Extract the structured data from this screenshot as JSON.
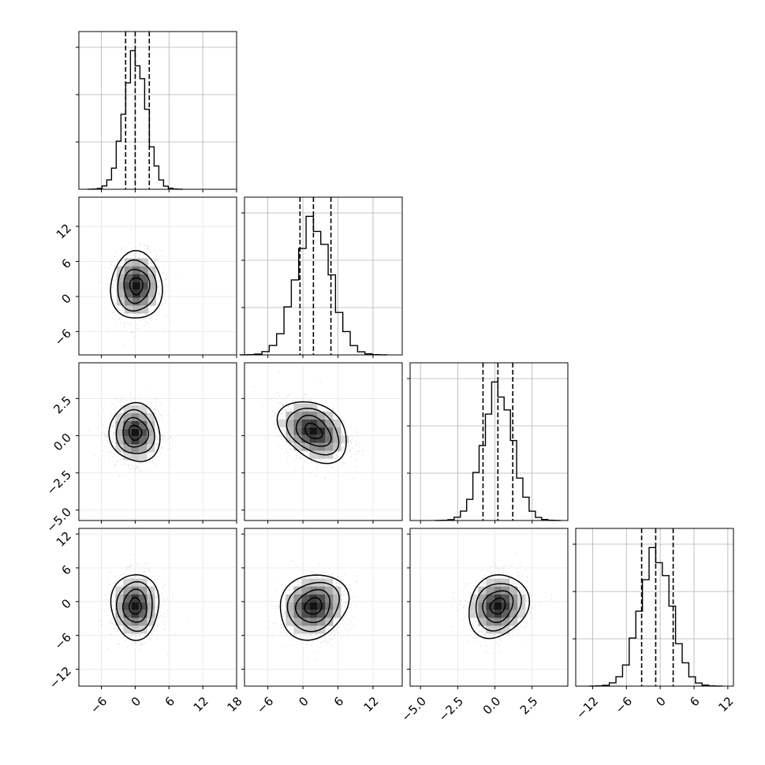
{
  "chart_data": {
    "type": "corner",
    "parameters": 4,
    "quantile_lines": "dashed",
    "grid": true,
    "axes": [
      {
        "range": [
          -10,
          18
        ],
        "ticks": [
          -6,
          0,
          6,
          12,
          18
        ],
        "tick_labels": [
          "−6",
          "0",
          "6",
          "12",
          "18"
        ]
      },
      {
        "range": [
          -10,
          17
        ],
        "ticks": [
          -6,
          0,
          6,
          12
        ],
        "tick_labels": [
          "−6",
          "0",
          "6",
          "12"
        ]
      },
      {
        "range": [
          -5.7,
          4.9
        ],
        "ticks": [
          -5.0,
          -2.5,
          0.0,
          2.5
        ],
        "tick_labels": [
          "−5.0",
          "−2.5",
          "0.0",
          "2.5"
        ]
      },
      {
        "range": [
          -15,
          13
        ],
        "ticks": [
          -12,
          -6,
          0,
          6,
          12
        ],
        "tick_labels": [
          "−12",
          "−6",
          "0",
          "6",
          "12"
        ]
      }
    ],
    "histograms": [
      {
        "param": 0,
        "mean": 0,
        "sd": 2.0,
        "quantiles": [
          -1.7,
          0.0,
          2.5
        ],
        "ymax_frac": 1.0
      },
      {
        "param": 1,
        "mean": 1.8,
        "sd": 3.0,
        "quantiles": [
          -0.5,
          1.8,
          4.8
        ],
        "ymax_frac": 1.0
      },
      {
        "param": 2,
        "mean": 0.2,
        "sd": 1.0,
        "quantiles": [
          -0.8,
          0.2,
          1.2
        ],
        "ymax_frac": 1.0
      },
      {
        "param": 3,
        "mean": -0.8,
        "sd": 2.8,
        "quantiles": [
          -3.3,
          -0.8,
          2.3
        ],
        "ymax_frac": 1.0
      }
    ],
    "pairs": [
      {
        "x": 0,
        "y": 1,
        "cx": 0.2,
        "cy": 1.8,
        "sx": 2.2,
        "sy": 3.0,
        "rho": 0.0
      },
      {
        "x": 0,
        "y": 2,
        "cx": 0.0,
        "cy": 0.2,
        "sx": 2.2,
        "sy": 1.0,
        "rho": 0.0
      },
      {
        "x": 1,
        "y": 2,
        "cx": 1.8,
        "cy": 0.3,
        "sx": 3.0,
        "sy": 1.0,
        "rho": -0.3
      },
      {
        "x": 0,
        "y": 3,
        "cx": 0.0,
        "cy": -0.8,
        "sx": 2.2,
        "sy": 2.8,
        "rho": 0.0
      },
      {
        "x": 1,
        "y": 3,
        "cx": 1.8,
        "cy": -0.8,
        "sx": 3.0,
        "sy": 2.8,
        "rho": 0.1
      },
      {
        "x": 2,
        "y": 3,
        "cx": 0.2,
        "cy": -0.8,
        "sx": 1.0,
        "sy": 2.8,
        "rho": 0.1
      }
    ],
    "colors": {
      "line": "#000000",
      "grid": "#b0b0b0",
      "points": "#9a9a9a",
      "frame": "#000000"
    }
  }
}
